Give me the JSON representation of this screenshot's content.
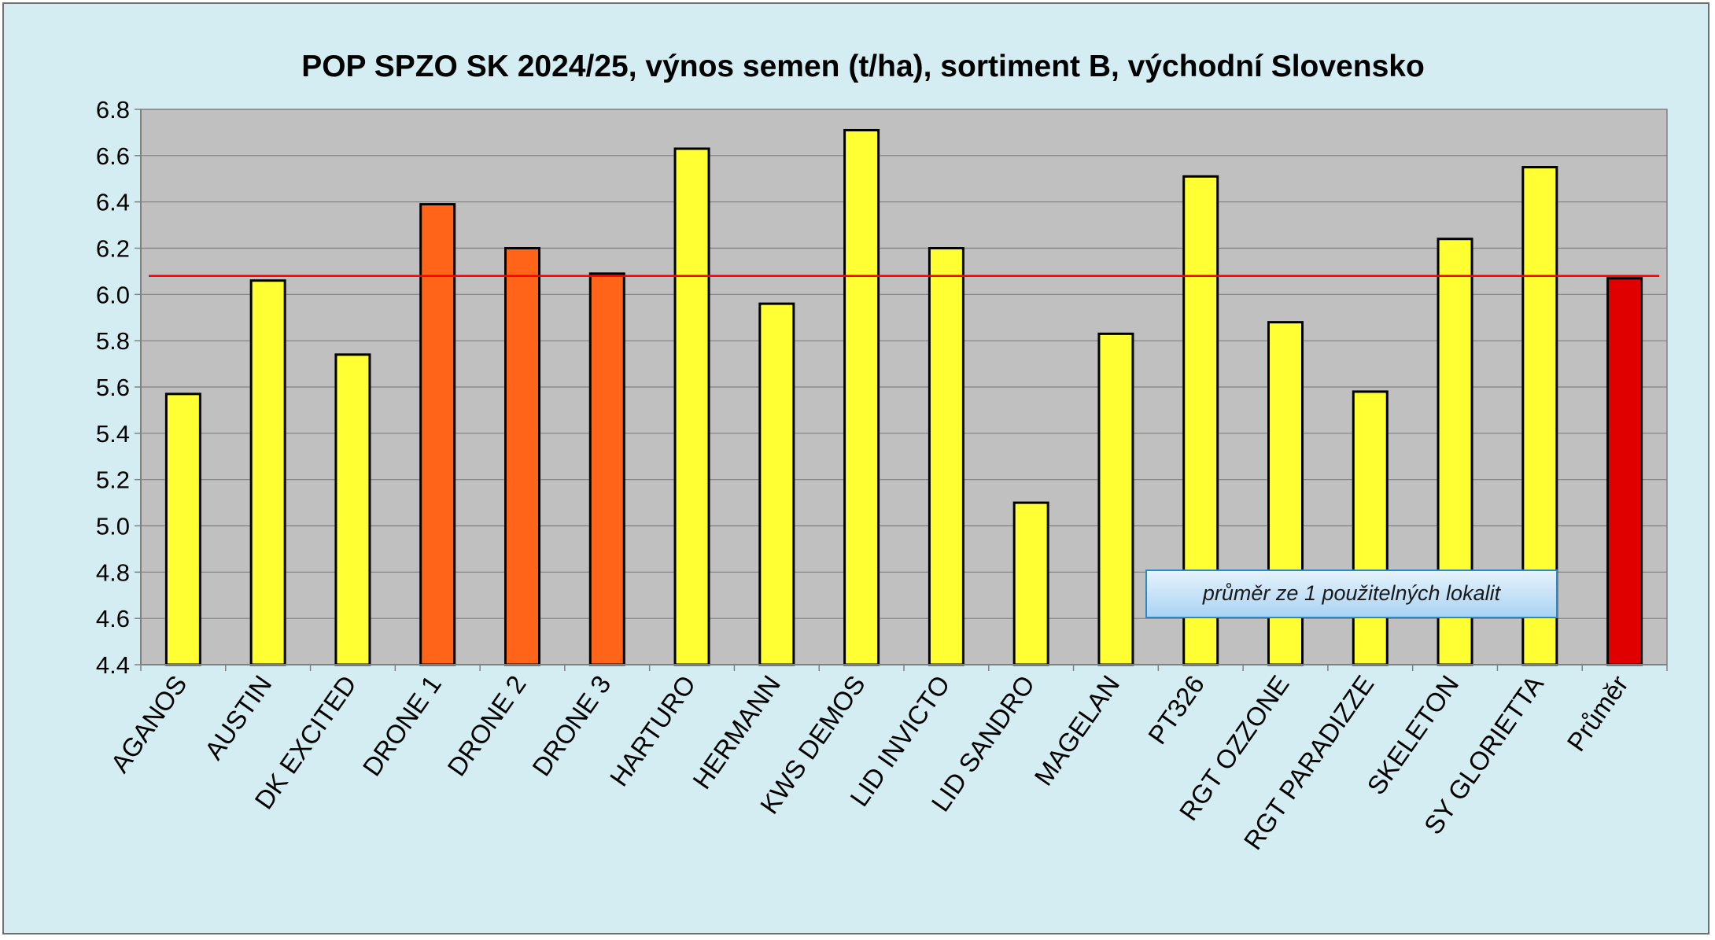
{
  "chart_data": {
    "type": "bar",
    "title": "POP SPZO SK 2024/25, výnos semen (t/ha), sortiment B, východní Slovensko",
    "xlabel": "",
    "ylabel": "",
    "ylim": [
      4.4,
      6.8
    ],
    "ytick_step": 0.2,
    "yticks": [
      "4.4",
      "4.6",
      "4.8",
      "5.0",
      "5.2",
      "5.4",
      "5.6",
      "5.8",
      "6.0",
      "6.2",
      "6.4",
      "6.6",
      "6.8"
    ],
    "grid": true,
    "categories": [
      "AGANOS",
      "AUSTIN",
      "DK EXCITED",
      "DRONE 1",
      "DRONE 2",
      "DRONE 3",
      "HARTURO",
      "HERMANN",
      "KWS DEMOS",
      "LID INVICTO",
      "LID SANDRO",
      "MAGELAN",
      "PT326",
      "RGT OZZONE",
      "RGT PARADIZZE",
      "SKELETON",
      "SY GLORIETTA",
      "Průměr"
    ],
    "values": [
      5.57,
      6.06,
      5.74,
      6.39,
      6.2,
      6.09,
      6.63,
      5.96,
      6.71,
      6.2,
      5.1,
      5.83,
      6.51,
      5.88,
      5.58,
      6.24,
      6.55,
      6.07
    ],
    "bar_colors": [
      "#ffff33",
      "#ffff33",
      "#ffff33",
      "#ff6418",
      "#ff6418",
      "#ff6418",
      "#ffff33",
      "#ffff33",
      "#ffff33",
      "#ffff33",
      "#ffff33",
      "#ffff33",
      "#ffff33",
      "#ffff33",
      "#ffff33",
      "#ffff33",
      "#ffff33",
      "#e00000"
    ],
    "reference_line": {
      "value": 6.08,
      "color": "#ff0000"
    },
    "annotation": "průměr ze 1 použitelných lokalit",
    "colors": {
      "background": "#d3edf3",
      "plot_area": "#c0c0c0",
      "gridline": "#808080",
      "bar_default": "#ffff33",
      "bar_highlight": "#ff6418",
      "bar_average": "#e00000"
    }
  }
}
